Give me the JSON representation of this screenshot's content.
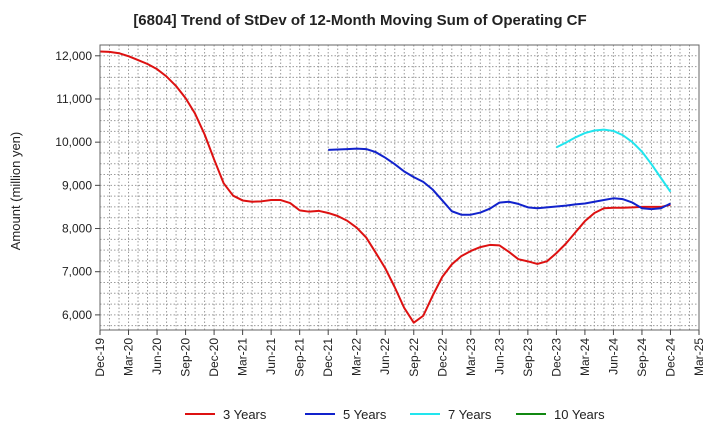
{
  "chart_data": {
    "type": "line",
    "title": "[6804]  Trend of StDev of 12-Month Moving Sum of Operating CF",
    "ylabel": "Amount (million yen)",
    "xlabel": "",
    "ylim": [
      5650,
      12250
    ],
    "yticks": [
      6000,
      7000,
      8000,
      9000,
      10000,
      11000,
      12000
    ],
    "ytick_labels": [
      "6,000",
      "7,000",
      "8,000",
      "9,000",
      "10,000",
      "11,000",
      "12,000"
    ],
    "xticks": [
      "Dec-19",
      "Mar-20",
      "Jun-20",
      "Sep-20",
      "Dec-20",
      "Mar-21",
      "Jun-21",
      "Sep-21",
      "Dec-21",
      "Mar-22",
      "Jun-22",
      "Sep-22",
      "Dec-22",
      "Mar-23",
      "Jun-23",
      "Sep-23",
      "Dec-23",
      "Mar-24",
      "Jun-24",
      "Sep-24",
      "Dec-24",
      "Mar-25"
    ],
    "x_months": [
      "Dec-19",
      "Jan-20",
      "Feb-20",
      "Mar-20",
      "Apr-20",
      "May-20",
      "Jun-20",
      "Jul-20",
      "Aug-20",
      "Sep-20",
      "Oct-20",
      "Nov-20",
      "Dec-20",
      "Jan-21",
      "Feb-21",
      "Mar-21",
      "Apr-21",
      "May-21",
      "Jun-21",
      "Jul-21",
      "Aug-21",
      "Sep-21",
      "Oct-21",
      "Nov-21",
      "Dec-21",
      "Jan-22",
      "Feb-22",
      "Mar-22",
      "Apr-22",
      "May-22",
      "Jun-22",
      "Jul-22",
      "Aug-22",
      "Sep-22",
      "Oct-22",
      "Nov-22",
      "Dec-22",
      "Jan-23",
      "Feb-23",
      "Mar-23",
      "Apr-23",
      "May-23",
      "Jun-23",
      "Jul-23",
      "Aug-23",
      "Sep-23",
      "Oct-23",
      "Nov-23",
      "Dec-23",
      "Jan-24",
      "Feb-24",
      "Mar-24",
      "Apr-24",
      "May-24",
      "Jun-24",
      "Jul-24",
      "Aug-24",
      "Sep-24",
      "Oct-24",
      "Nov-24",
      "Dec-24"
    ],
    "grid": true,
    "legend_position": "bottom",
    "series": [
      {
        "name": "3 Years",
        "color": "#dd1111",
        "start": "Dec-19",
        "values": [
          12100,
          12090,
          12060,
          11990,
          11900,
          11810,
          11690,
          11520,
          11300,
          11020,
          10660,
          10180,
          9600,
          9050,
          8760,
          8650,
          8620,
          8630,
          8660,
          8660,
          8590,
          8420,
          8390,
          8410,
          8360,
          8290,
          8180,
          8020,
          7790,
          7440,
          7080,
          6640,
          6160,
          5820,
          5980,
          6450,
          6880,
          7170,
          7360,
          7480,
          7570,
          7620,
          7610,
          7460,
          7290,
          7240,
          7180,
          7240,
          7430,
          7650,
          7910,
          8170,
          8360,
          8470,
          8480,
          8480,
          8490,
          8500,
          8500,
          8500,
          8550
        ]
      },
      {
        "name": "5 Years",
        "color": "#1122cc",
        "start": "Dec-21",
        "values": [
          9820,
          9830,
          9840,
          9850,
          9840,
          9770,
          9640,
          9490,
          9320,
          9190,
          9080,
          8900,
          8650,
          8400,
          8320,
          8320,
          8370,
          8460,
          8600,
          8620,
          8570,
          8490,
          8470,
          8490,
          8510,
          8530,
          8560,
          8580,
          8620,
          8660,
          8700,
          8680,
          8600,
          8470,
          8450,
          8470,
          8580
        ]
      },
      {
        "name": "7 Years",
        "color": "#22e5ee",
        "start": "Dec-23",
        "values": [
          9880,
          9990,
          10110,
          10210,
          10270,
          10290,
          10260,
          10160,
          10000,
          9780,
          9490,
          9170,
          8850
        ]
      },
      {
        "name": "10 Years",
        "color": "#118811",
        "start": "",
        "values": []
      }
    ]
  }
}
